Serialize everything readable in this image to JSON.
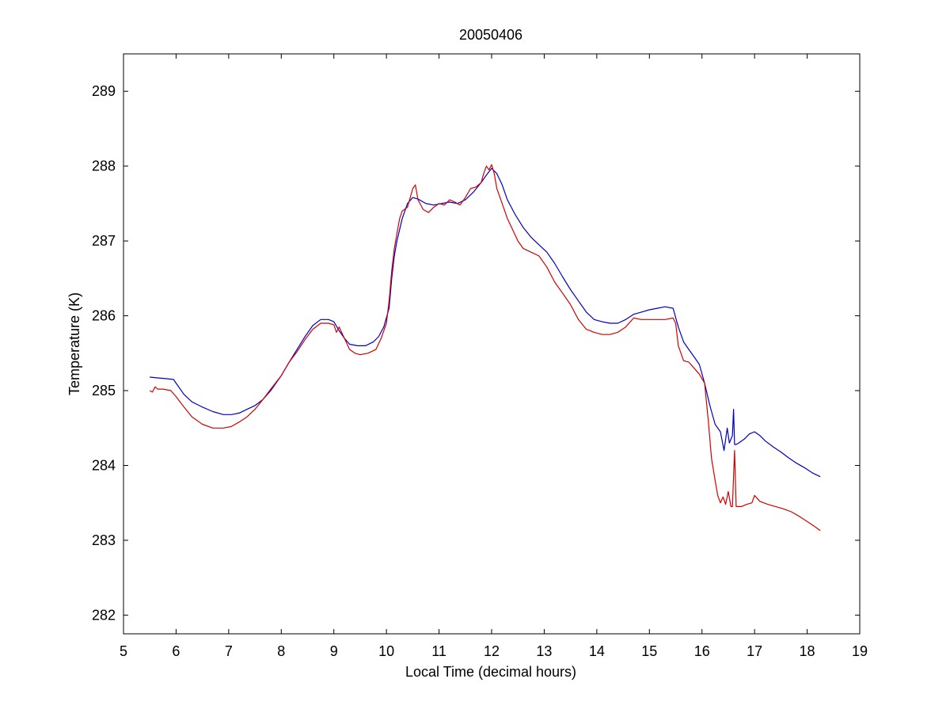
{
  "chart_data": {
    "type": "line",
    "title": "20050406",
    "xlabel": "Local Time (decimal hours)",
    "ylabel": "Temperature (K)",
    "xlim": [
      5,
      19
    ],
    "ylim": [
      281.75,
      289.5
    ],
    "xticks": [
      5,
      6,
      7,
      8,
      9,
      10,
      11,
      12,
      13,
      14,
      15,
      16,
      17,
      18,
      19
    ],
    "yticks": [
      282,
      283,
      284,
      285,
      286,
      287,
      288,
      289
    ],
    "grid": false,
    "legend": "none",
    "series": [
      {
        "color": "#0000c8",
        "x": [
          5.5,
          5.65,
          5.8,
          5.95,
          6.0,
          6.15,
          6.3,
          6.5,
          6.7,
          6.9,
          7.05,
          7.2,
          7.35,
          7.5,
          7.65,
          7.8,
          8.0,
          8.15,
          8.3,
          8.45,
          8.6,
          8.75,
          8.9,
          9.0,
          9.1,
          9.2,
          9.3,
          9.45,
          9.6,
          9.75,
          9.85,
          9.95,
          10.05,
          10.1,
          10.15,
          10.2,
          10.3,
          10.4,
          10.5,
          10.6,
          10.75,
          10.9,
          11.05,
          11.2,
          11.35,
          11.5,
          11.65,
          11.8,
          11.9,
          12.0,
          12.1,
          12.2,
          12.3,
          12.45,
          12.6,
          12.75,
          12.9,
          13.05,
          13.2,
          13.35,
          13.5,
          13.65,
          13.8,
          13.95,
          14.1,
          14.25,
          14.4,
          14.55,
          14.7,
          14.85,
          15.0,
          15.15,
          15.3,
          15.45,
          15.55,
          15.65,
          15.75,
          15.85,
          15.95,
          16.05,
          16.15,
          16.25,
          16.35,
          16.42,
          16.48,
          16.52,
          16.58,
          16.6,
          16.62,
          16.65,
          16.7,
          16.8,
          16.9,
          17.0,
          17.1,
          17.2,
          17.35,
          17.5,
          17.65,
          17.8,
          17.95,
          18.1,
          18.25
        ],
        "y": [
          285.18,
          285.17,
          285.16,
          285.15,
          285.1,
          284.95,
          284.85,
          284.78,
          284.72,
          284.68,
          284.68,
          284.7,
          284.75,
          284.8,
          284.88,
          285.0,
          285.2,
          285.38,
          285.55,
          285.72,
          285.87,
          285.95,
          285.95,
          285.92,
          285.8,
          285.7,
          285.62,
          285.6,
          285.6,
          285.65,
          285.72,
          285.85,
          286.1,
          286.5,
          286.8,
          287.0,
          287.3,
          287.5,
          287.58,
          287.56,
          287.5,
          287.48,
          287.5,
          287.52,
          287.5,
          287.55,
          287.65,
          287.78,
          287.88,
          287.97,
          287.9,
          287.75,
          287.55,
          287.35,
          287.18,
          287.05,
          286.95,
          286.85,
          286.7,
          286.52,
          286.35,
          286.2,
          286.05,
          285.95,
          285.92,
          285.9,
          285.9,
          285.95,
          286.02,
          286.05,
          286.08,
          286.1,
          286.12,
          286.1,
          285.85,
          285.65,
          285.55,
          285.45,
          285.35,
          285.1,
          284.8,
          284.55,
          284.45,
          284.2,
          284.5,
          284.3,
          284.4,
          284.75,
          284.28,
          284.28,
          284.3,
          284.35,
          284.42,
          284.45,
          284.4,
          284.33,
          284.25,
          284.18,
          284.1,
          284.03,
          283.97,
          283.9,
          283.85
        ]
      },
      {
        "color": "#d40000",
        "x": [
          5.5,
          5.55,
          5.6,
          5.65,
          5.75,
          5.9,
          6.0,
          6.15,
          6.3,
          6.5,
          6.7,
          6.9,
          7.05,
          7.2,
          7.35,
          7.5,
          7.65,
          7.8,
          8.0,
          8.15,
          8.3,
          8.45,
          8.6,
          8.75,
          8.9,
          9.0,
          9.05,
          9.1,
          9.2,
          9.3,
          9.4,
          9.5,
          9.65,
          9.8,
          9.9,
          10.0,
          10.05,
          10.1,
          10.15,
          10.2,
          10.25,
          10.3,
          10.4,
          10.5,
          10.55,
          10.6,
          10.7,
          10.8,
          10.9,
          11.0,
          11.1,
          11.2,
          11.3,
          11.4,
          11.5,
          11.6,
          11.7,
          11.8,
          11.85,
          11.9,
          11.95,
          12.0,
          12.05,
          12.1,
          12.2,
          12.3,
          12.4,
          12.5,
          12.6,
          12.75,
          12.9,
          13.05,
          13.2,
          13.35,
          13.5,
          13.65,
          13.8,
          13.95,
          14.1,
          14.25,
          14.4,
          14.55,
          14.7,
          14.85,
          15.0,
          15.15,
          15.3,
          15.45,
          15.5,
          15.55,
          15.65,
          15.75,
          15.85,
          15.95,
          16.05,
          16.12,
          16.18,
          16.25,
          16.3,
          16.35,
          16.4,
          16.45,
          16.5,
          16.55,
          16.58,
          16.6,
          16.62,
          16.65,
          16.75,
          16.85,
          16.95,
          17.0,
          17.1,
          17.25,
          17.4,
          17.55,
          17.7,
          17.85,
          18.0,
          18.15,
          18.25
        ],
        "y": [
          285.0,
          284.98,
          285.05,
          285.02,
          285.02,
          285.0,
          284.92,
          284.78,
          284.65,
          284.55,
          284.5,
          284.5,
          284.52,
          284.58,
          284.65,
          284.75,
          284.88,
          285.02,
          285.2,
          285.38,
          285.52,
          285.68,
          285.82,
          285.9,
          285.9,
          285.88,
          285.78,
          285.85,
          285.7,
          285.55,
          285.5,
          285.48,
          285.5,
          285.55,
          285.7,
          285.9,
          286.2,
          286.6,
          286.9,
          287.1,
          287.3,
          287.4,
          287.45,
          287.7,
          287.75,
          287.55,
          287.42,
          287.38,
          287.45,
          287.5,
          287.48,
          287.55,
          287.52,
          287.48,
          287.58,
          287.7,
          287.72,
          287.78,
          287.9,
          288.0,
          287.95,
          288.02,
          287.9,
          287.7,
          287.5,
          287.3,
          287.15,
          287.0,
          286.9,
          286.85,
          286.8,
          286.65,
          286.45,
          286.3,
          286.15,
          285.95,
          285.82,
          285.78,
          285.75,
          285.75,
          285.78,
          285.85,
          285.97,
          285.95,
          285.95,
          285.95,
          285.95,
          285.97,
          285.9,
          285.6,
          285.4,
          285.38,
          285.3,
          285.22,
          285.1,
          284.6,
          284.1,
          283.8,
          283.6,
          283.5,
          283.58,
          283.48,
          283.65,
          283.45,
          283.45,
          283.85,
          284.2,
          283.45,
          283.45,
          283.48,
          283.5,
          283.6,
          283.52,
          283.48,
          283.45,
          283.42,
          283.38,
          283.32,
          283.25,
          283.18,
          283.13
        ]
      }
    ]
  }
}
